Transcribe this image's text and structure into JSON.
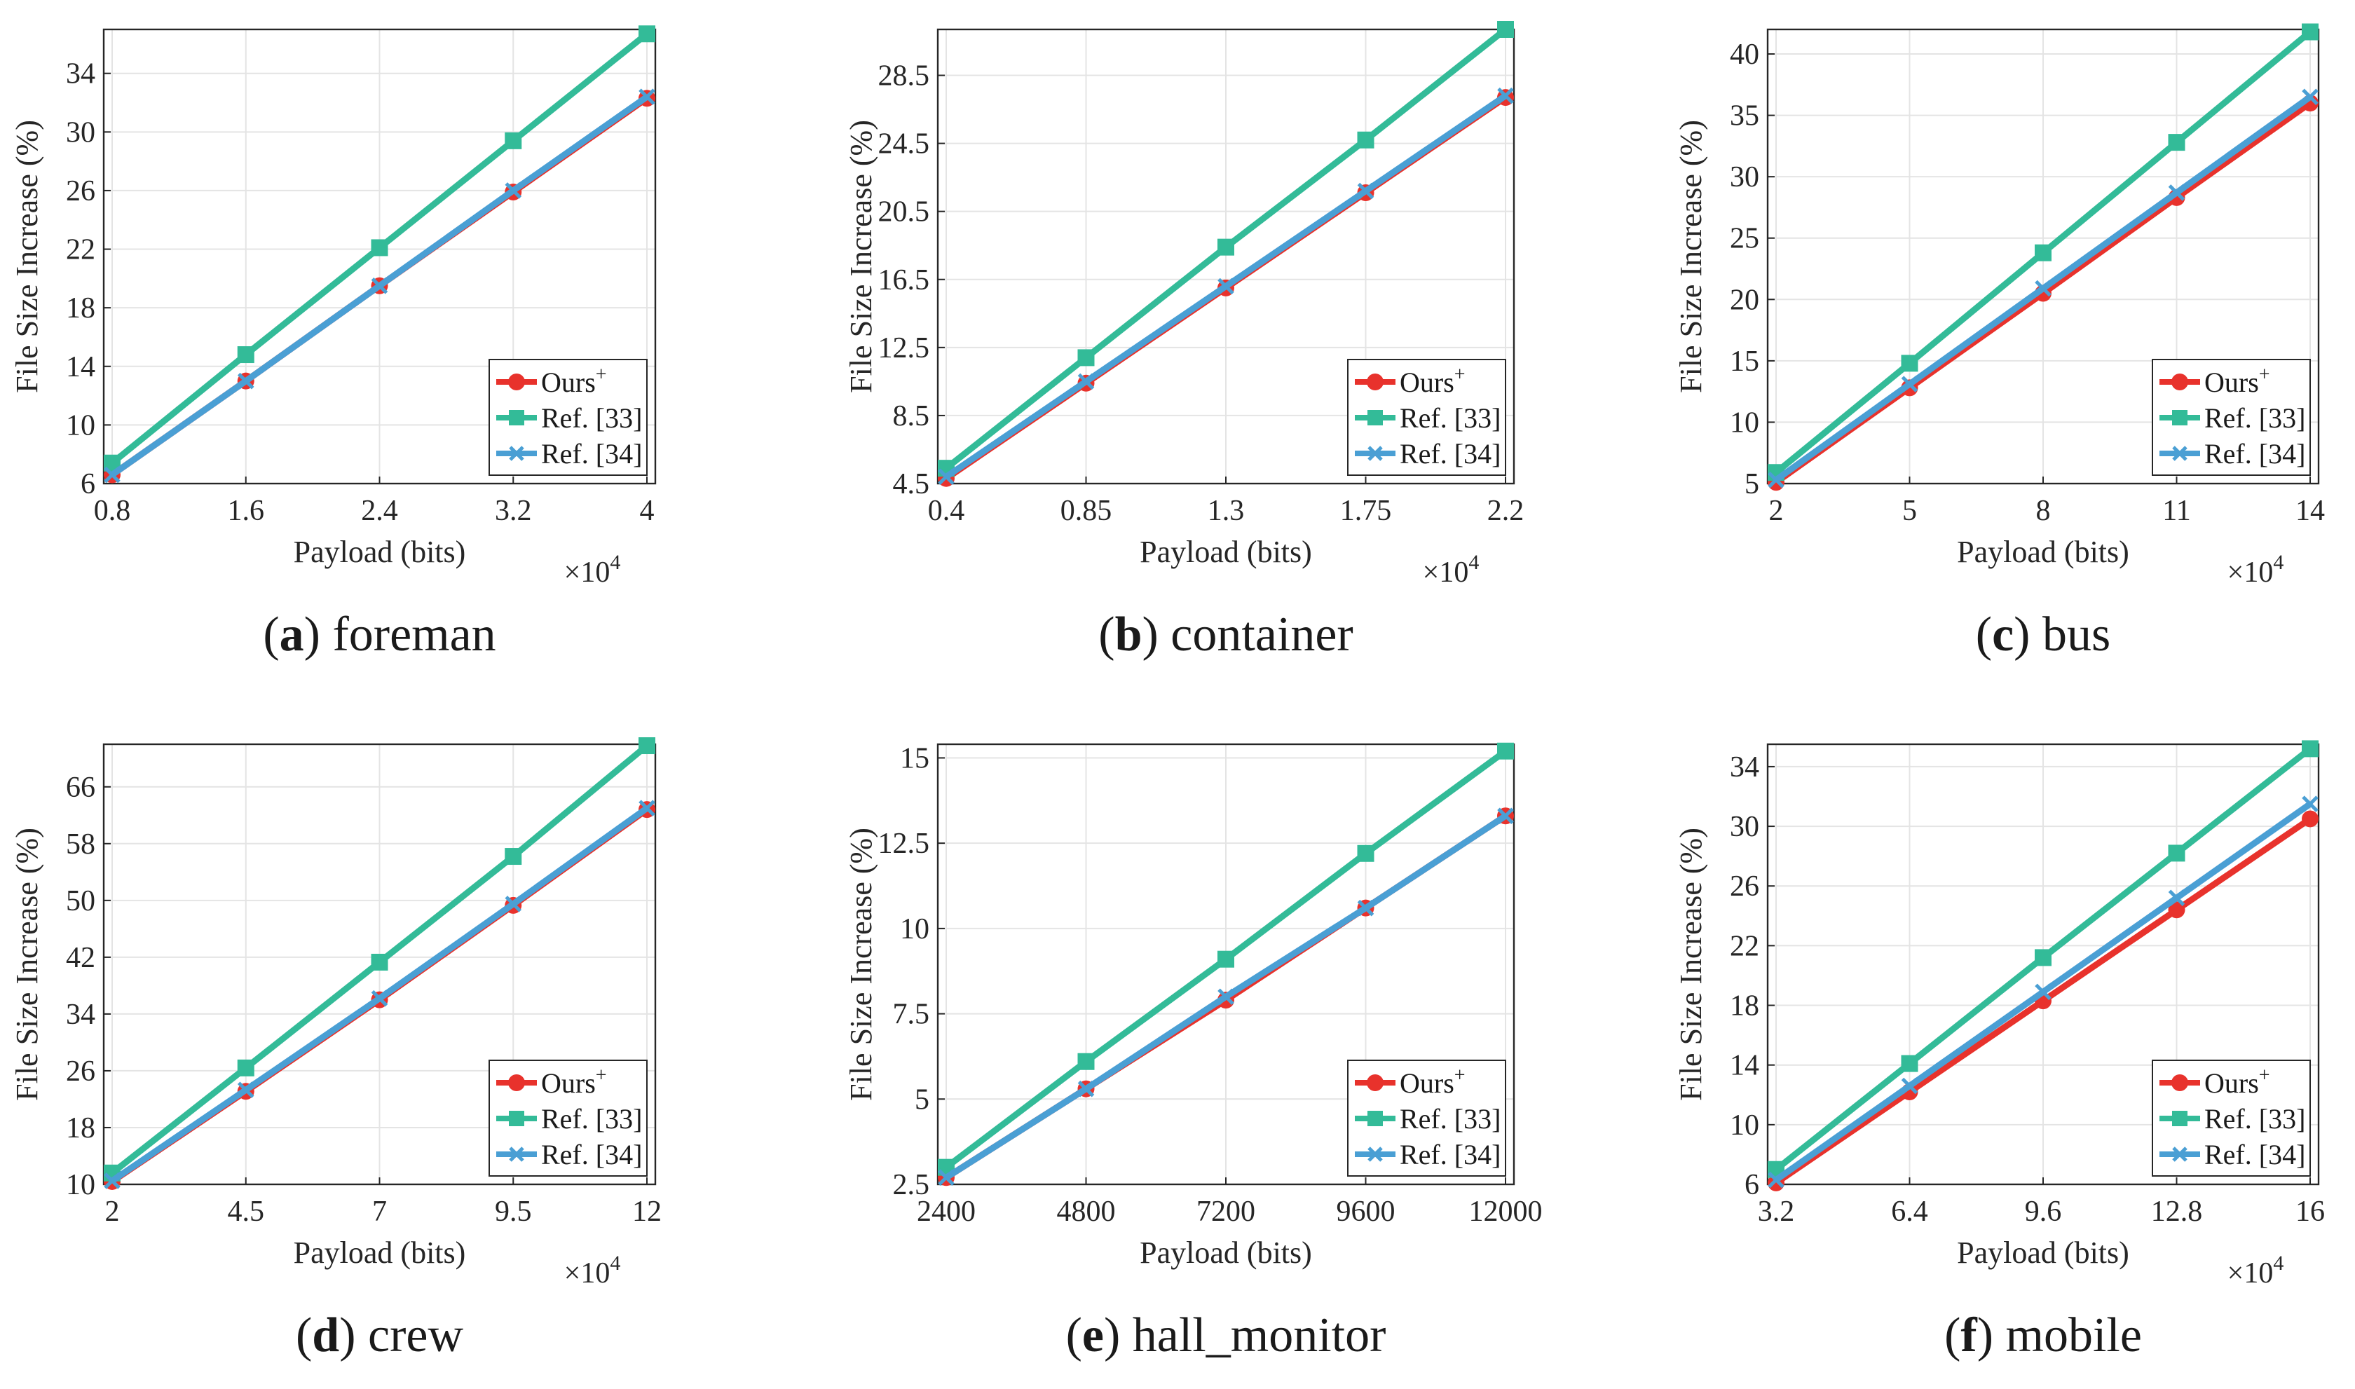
{
  "figure": {
    "series_styles": [
      {
        "name": "Ours+",
        "color": "#e8322c",
        "marker": "circle"
      },
      {
        "name": "Ref. [33]",
        "color": "#33bb98",
        "marker": "square"
      },
      {
        "name": "Ref. [34]",
        "color": "#4a9fd4",
        "marker": "x"
      }
    ]
  },
  "chart_data": [
    {
      "type": "line",
      "panel": "a",
      "caption": "foreman",
      "xlabel": "Payload (bits)",
      "ylabel": "File Size Increase (%)",
      "x_multiplier": "×10^4",
      "x": [
        0.8,
        1.6,
        2.4,
        3.2,
        4
      ],
      "xticks": [
        "0.8",
        "1.6",
        "2.4",
        "3.2",
        "4"
      ],
      "yticks": [
        6,
        10,
        14,
        18,
        22,
        26,
        30,
        34
      ],
      "ylim": [
        6,
        37
      ],
      "legend_pos": "bottom-right",
      "series": [
        {
          "name": "Ours",
          "sup": "+",
          "values": [
            6.6,
            13.0,
            19.5,
            25.9,
            32.3
          ]
        },
        {
          "name": "Ref. [33]",
          "values": [
            7.4,
            14.8,
            22.1,
            29.4,
            36.7
          ]
        },
        {
          "name": "Ref. [34]",
          "values": [
            6.6,
            13.0,
            19.5,
            26.0,
            32.4
          ]
        }
      ]
    },
    {
      "type": "line",
      "panel": "b",
      "caption": "container",
      "xlabel": "Payload (bits)",
      "ylabel": "File Size Increase (%)",
      "x_multiplier": "×10^4",
      "x": [
        0.4,
        0.85,
        1.3,
        1.75,
        2.2
      ],
      "xticks": [
        "0.4",
        "0.85",
        "1.3",
        "1.75",
        "2.2"
      ],
      "yticks": [
        4.5,
        8.5,
        12.5,
        16.5,
        20.5,
        24.5,
        28.5
      ],
      "ylim": [
        4.5,
        31.2
      ],
      "legend_pos": "bottom-right",
      "series": [
        {
          "name": "Ours",
          "sup": "+",
          "values": [
            4.8,
            10.4,
            16.0,
            21.6,
            27.2
          ]
        },
        {
          "name": "Ref. [33]",
          "values": [
            5.4,
            11.9,
            18.4,
            24.7,
            31.2
          ]
        },
        {
          "name": "Ref. [34]",
          "values": [
            4.9,
            10.5,
            16.1,
            21.7,
            27.3
          ]
        }
      ]
    },
    {
      "type": "line",
      "panel": "c",
      "caption": "bus",
      "xlabel": "Payload (bits)",
      "ylabel": "File Size Increase (%)",
      "x_multiplier": "×10^4",
      "x": [
        2,
        5,
        8,
        11,
        14
      ],
      "xticks": [
        "2",
        "5",
        "8",
        "11",
        "14"
      ],
      "yticks": [
        5,
        10,
        15,
        20,
        25,
        30,
        35,
        40
      ],
      "ylim": [
        5,
        42
      ],
      "legend_pos": "bottom-right",
      "series": [
        {
          "name": "Ours",
          "sup": "+",
          "values": [
            5.1,
            12.8,
            20.5,
            28.3,
            36.0
          ]
        },
        {
          "name": "Ref. [33]",
          "values": [
            5.9,
            14.8,
            23.8,
            32.8,
            41.8
          ]
        },
        {
          "name": "Ref. [34]",
          "values": [
            5.3,
            13.1,
            20.9,
            28.7,
            36.5
          ]
        }
      ]
    },
    {
      "type": "line",
      "panel": "d",
      "caption": "crew",
      "xlabel": "Payload (bits)",
      "ylabel": "File Size Increase (%)",
      "x_multiplier": "×10^4",
      "x": [
        2,
        4.5,
        7,
        9.5,
        12
      ],
      "xticks": [
        "2",
        "4.5",
        "7",
        "9.5",
        "12"
      ],
      "yticks": [
        10,
        18,
        26,
        34,
        42,
        50,
        58,
        66
      ],
      "ylim": [
        10,
        72
      ],
      "legend_pos": "bottom-right",
      "series": [
        {
          "name": "Ours",
          "sup": "+",
          "values": [
            10.4,
            23.1,
            36.0,
            49.3,
            62.8
          ]
        },
        {
          "name": "Ref. [33]",
          "values": [
            11.6,
            26.4,
            41.3,
            56.2,
            71.8
          ]
        },
        {
          "name": "Ref. [34]",
          "values": [
            10.5,
            23.3,
            36.2,
            49.5,
            63.0
          ]
        }
      ]
    },
    {
      "type": "line",
      "panel": "e",
      "caption": "hall_monitor",
      "xlabel": "Payload (bits)",
      "ylabel": "File Size Increase (%)",
      "x_multiplier": "",
      "x": [
        2400,
        4800,
        7200,
        9600,
        12000
      ],
      "xticks": [
        "2400",
        "4800",
        "7200",
        "9600",
        "12000"
      ],
      "yticks": [
        2.5,
        5,
        7.5,
        10,
        12.5,
        15
      ],
      "ylim": [
        2.5,
        15.4
      ],
      "legend_pos": "bottom-right",
      "series": [
        {
          "name": "Ours",
          "sup": "+",
          "values": [
            2.7,
            5.3,
            7.9,
            10.6,
            13.3
          ]
        },
        {
          "name": "Ref. [33]",
          "values": [
            3.0,
            6.1,
            9.1,
            12.2,
            15.2
          ]
        },
        {
          "name": "Ref. [34]",
          "values": [
            2.7,
            5.3,
            8.0,
            10.6,
            13.3
          ]
        }
      ]
    },
    {
      "type": "line",
      "panel": "f",
      "caption": "mobile",
      "xlabel": "Payload (bits)",
      "ylabel": "File Size Increase (%)",
      "x_multiplier": "×10^4",
      "x": [
        3.2,
        6.4,
        9.6,
        12.8,
        16
      ],
      "xticks": [
        "3.2",
        "6.4",
        "9.6",
        "12.8",
        "16"
      ],
      "yticks": [
        6,
        10,
        14,
        18,
        22,
        26,
        30,
        34
      ],
      "ylim": [
        6,
        35.5
      ],
      "legend_pos": "bottom-right",
      "series": [
        {
          "name": "Ours",
          "sup": "+",
          "values": [
            6.1,
            12.2,
            18.3,
            24.4,
            30.5
          ]
        },
        {
          "name": "Ref. [33]",
          "values": [
            7.0,
            14.1,
            21.2,
            28.2,
            35.2
          ]
        },
        {
          "name": "Ref. [34]",
          "values": [
            6.3,
            12.6,
            18.9,
            25.2,
            31.5
          ]
        }
      ]
    }
  ]
}
